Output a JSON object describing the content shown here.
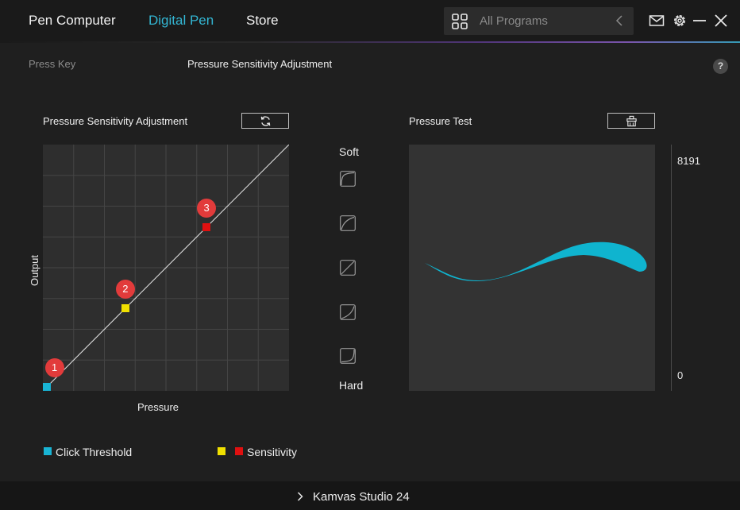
{
  "nav": {
    "tabs": [
      {
        "label": "Pen Computer",
        "active": false
      },
      {
        "label": "Digital Pen",
        "active": true
      },
      {
        "label": "Store",
        "active": false
      }
    ],
    "search_placeholder": "All Programs",
    "accent_color": "#33b6d3"
  },
  "top_icons": [
    "mail-icon",
    "gear-icon",
    "minimize-icon",
    "close-icon"
  ],
  "subnav": {
    "tabs": [
      {
        "label": "Press Key",
        "active": false
      },
      {
        "label": "Pressure Sensitivity Adjustment",
        "active": true
      }
    ],
    "help": "?"
  },
  "curve_panel": {
    "title": "Pressure Sensitivity Adjustment",
    "reset_icon": "refresh-icon",
    "x_axis_label": "Pressure",
    "y_axis_label": "Output",
    "points": [
      {
        "badge": "1",
        "pressure": 0.015,
        "output": 0.015,
        "color": "#19b4d4"
      },
      {
        "badge": "2",
        "pressure": 0.335,
        "output": 0.335,
        "color": "#f0e000"
      },
      {
        "badge": "3",
        "pressure": 0.665,
        "output": 0.665,
        "color": "#e01010"
      }
    ]
  },
  "presets": {
    "top_label": "Soft",
    "bottom_label": "Hard",
    "items": [
      "preset-curve-softest-icon",
      "preset-curve-soft-icon",
      "preset-curve-linear-icon",
      "preset-curve-hard-icon",
      "preset-curve-hardest-icon"
    ]
  },
  "test_panel": {
    "title": "Pressure Test",
    "clear_icon": "clear-icon",
    "scale_max": "8191",
    "scale_min": "0",
    "stroke_color": "#0fb4cf"
  },
  "legend": {
    "click_threshold": {
      "label": "Click Threshold",
      "color": "#19b4d4"
    },
    "sensitivity": {
      "label": "Sensitivity",
      "colors": [
        "#f0e000",
        "#e01010"
      ]
    }
  },
  "device": {
    "name": "Kamvas Studio 24"
  }
}
